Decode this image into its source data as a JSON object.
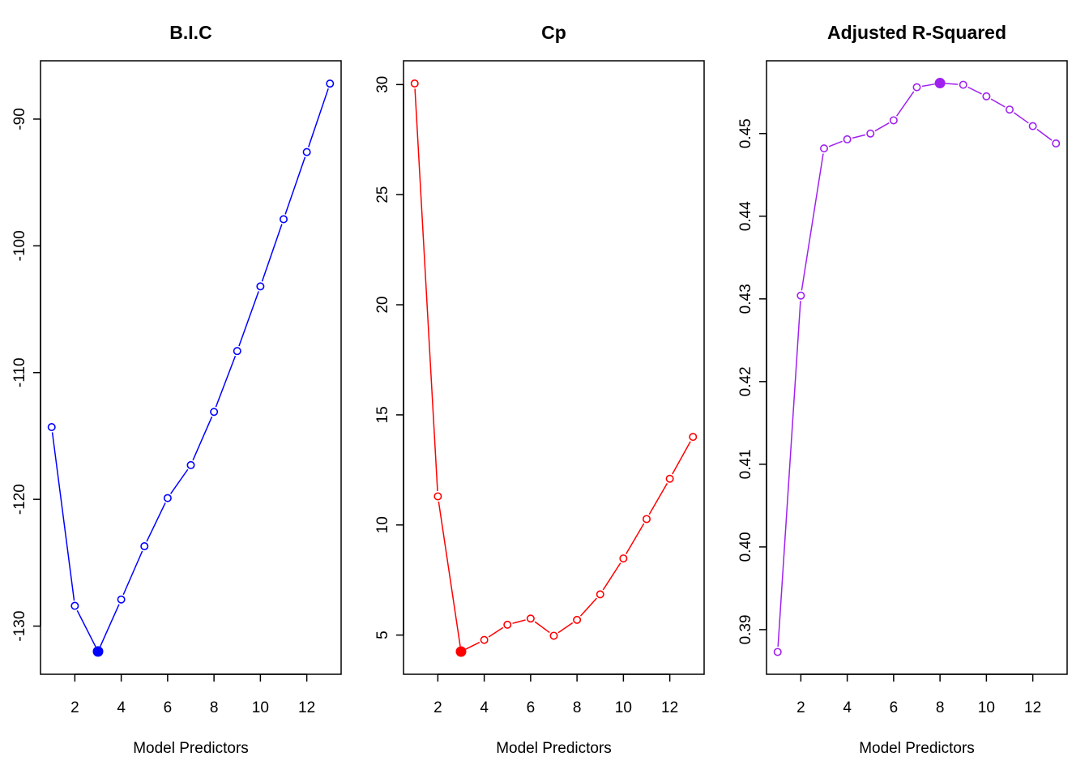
{
  "chart_data": [
    {
      "type": "line",
      "title": "B.I.C",
      "xlabel": "Model Predictors",
      "ylabel": "",
      "color": "#0000FF",
      "x": [
        1,
        2,
        3,
        4,
        5,
        6,
        7,
        8,
        9,
        10,
        11,
        12,
        13
      ],
      "values": [
        -114.3,
        -128.4,
        -132.0,
        -127.9,
        -123.7,
        -119.9,
        -117.3,
        -113.1,
        -108.3,
        -103.2,
        -97.9,
        -92.6,
        -87.2
      ],
      "highlight_index": 2,
      "xlim": [
        0.52,
        13.48
      ],
      "ylim": [
        -133.8,
        -85.4
      ],
      "xticks": [
        2,
        4,
        6,
        8,
        10,
        12
      ],
      "yticks": [
        -130,
        -120,
        -110,
        -100,
        -90
      ],
      "xtick_labels": [
        "2",
        "4",
        "6",
        "8",
        "10",
        "12"
      ],
      "ytick_labels": [
        "-130",
        "-120",
        "-110",
        "-100",
        "-90"
      ],
      "grid": false
    },
    {
      "type": "line",
      "title": "Cp",
      "xlabel": "Model Predictors",
      "ylabel": "",
      "color": "#FF0000",
      "x": [
        1,
        2,
        3,
        4,
        5,
        6,
        7,
        8,
        9,
        10,
        11,
        12,
        13
      ],
      "values": [
        30.05,
        11.3,
        4.25,
        4.78,
        5.47,
        5.75,
        4.97,
        5.69,
        6.85,
        8.48,
        10.27,
        12.1,
        14.0
      ],
      "highlight_index": 2,
      "xlim": [
        0.52,
        13.48
      ],
      "ylim": [
        3.22,
        31.08
      ],
      "xticks": [
        2,
        4,
        6,
        8,
        10,
        12
      ],
      "yticks": [
        5,
        10,
        15,
        20,
        25,
        30
      ],
      "xtick_labels": [
        "2",
        "4",
        "6",
        "8",
        "10",
        "12"
      ],
      "ytick_labels": [
        "5",
        "10",
        "15",
        "20",
        "25",
        "30"
      ],
      "grid": false
    },
    {
      "type": "line",
      "title": "Adjusted R-Squared",
      "xlabel": "Model Predictors",
      "ylabel": "",
      "color": "#A020F0",
      "x": [
        1,
        2,
        3,
        4,
        5,
        6,
        7,
        8,
        9,
        10,
        11,
        12,
        13
      ],
      "values": [
        0.3873,
        0.4304,
        0.4482,
        0.4493,
        0.45,
        0.4516,
        0.4556,
        0.4561,
        0.4559,
        0.4545,
        0.4529,
        0.4509,
        0.4488
      ],
      "highlight_index": 7,
      "xlim": [
        0.52,
        13.48
      ],
      "ylim": [
        0.3846,
        0.4588
      ],
      "xticks": [
        2,
        4,
        6,
        8,
        10,
        12
      ],
      "yticks": [
        0.39,
        0.4,
        0.41,
        0.42,
        0.43,
        0.44,
        0.45
      ],
      "xtick_labels": [
        "2",
        "4",
        "6",
        "8",
        "10",
        "12"
      ],
      "ytick_labels": [
        "0.39",
        "0.40",
        "0.41",
        "0.42",
        "0.43",
        "0.44",
        "0.45"
      ],
      "grid": false
    }
  ]
}
